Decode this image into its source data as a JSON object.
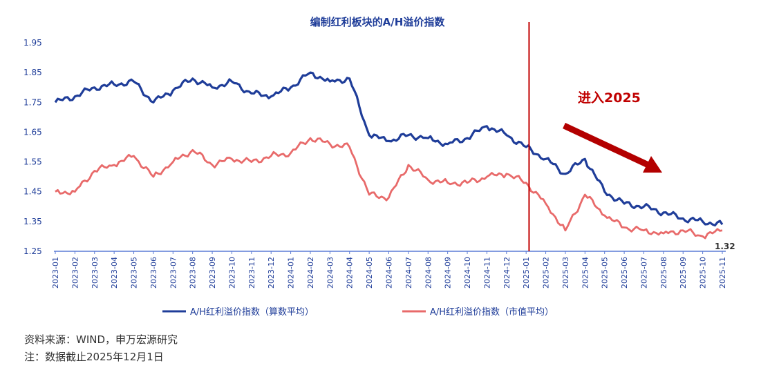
{
  "chart_data": {
    "type": "line",
    "title": "编制红利板块的A/H溢价指数",
    "xlabel": "",
    "ylabel": "",
    "ylim": [
      1.25,
      1.95
    ],
    "yticks": [
      "1.95",
      "1.85",
      "1.75",
      "1.65",
      "1.55",
      "1.45",
      "1.35",
      "1.25"
    ],
    "x": [
      "2023-01",
      "2023-02",
      "2023-03",
      "2023-04",
      "2023-05",
      "2023-06",
      "2023-07",
      "2023-08",
      "2023-09",
      "2023-10",
      "2023-11",
      "2023-12",
      "2024-01",
      "2024-02",
      "2024-03",
      "2024-04",
      "2024-05",
      "2024-06",
      "2024-07",
      "2024-08",
      "2024-09",
      "2024-10",
      "2024-11",
      "2024-12",
      "2025-01",
      "2025-02",
      "2025-03",
      "2025-04",
      "2025-05",
      "2025-06",
      "2025-07",
      "2025-08",
      "2025-09",
      "2025-10",
      "2025-11"
    ],
    "series": [
      {
        "name": "A/H红利溢价指数（算数平均）",
        "color": "#1f3d99",
        "values": [
          1.75,
          1.77,
          1.8,
          1.81,
          1.82,
          1.75,
          1.79,
          1.83,
          1.8,
          1.82,
          1.78,
          1.77,
          1.8,
          1.85,
          1.82,
          1.83,
          1.64,
          1.62,
          1.64,
          1.63,
          1.61,
          1.63,
          1.67,
          1.64,
          1.6,
          1.56,
          1.51,
          1.56,
          1.45,
          1.41,
          1.4,
          1.38,
          1.36,
          1.35,
          1.34
        ]
      },
      {
        "name": "A/H红利溢价指数（市值平均）",
        "color": "#e86a6a",
        "values": [
          1.45,
          1.45,
          1.52,
          1.54,
          1.57,
          1.5,
          1.55,
          1.59,
          1.54,
          1.56,
          1.55,
          1.57,
          1.58,
          1.63,
          1.61,
          1.6,
          1.44,
          1.43,
          1.54,
          1.49,
          1.48,
          1.48,
          1.5,
          1.51,
          1.48,
          1.41,
          1.32,
          1.44,
          1.37,
          1.33,
          1.32,
          1.31,
          1.32,
          1.3,
          1.32
        ]
      }
    ],
    "annotation_text": "进入2025",
    "end_label": "1.32",
    "marker_category": "2025-01"
  },
  "footer": {
    "source": "资料来源：WIND，申万宏源研究",
    "note": "注：数据截止2025年12月1日"
  }
}
